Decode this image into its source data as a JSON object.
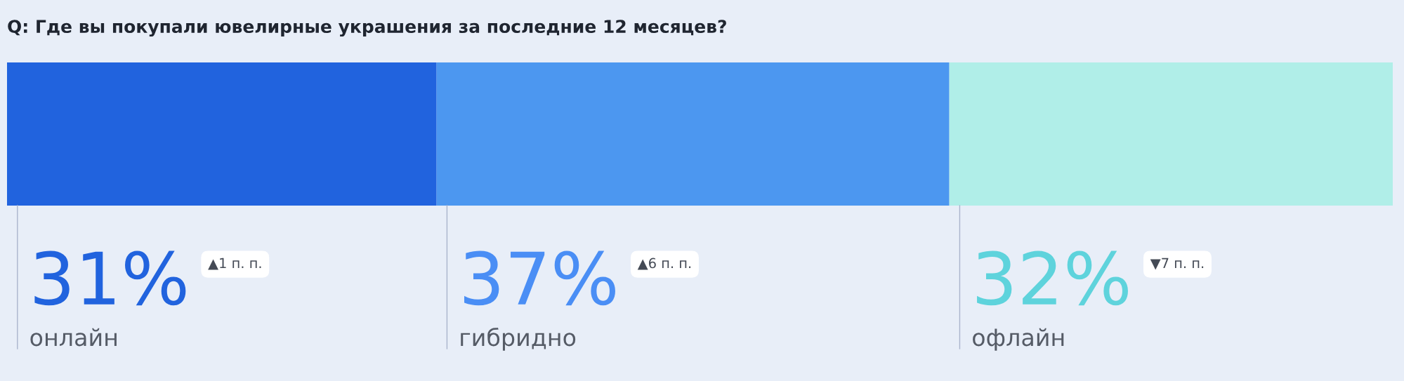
{
  "chart_data": {
    "type": "bar",
    "orientation": "horizontal",
    "stacked": true,
    "title": "Q: Где вы покупали ювелирные украшения за последние 12 месяцев?",
    "categories": [
      null
    ],
    "series": [
      {
        "name": "онлайн",
        "color": "#2163de",
        "values": [
          31
        ],
        "value_labels": [
          "31%"
        ]
      },
      {
        "name": "гибридно",
        "color": "#4c97f0",
        "values": [
          37
        ],
        "value_labels": [
          "37%"
        ]
      },
      {
        "name": "офлайн",
        "color": "#b0eee8",
        "values": [
          32
        ],
        "value_labels": [
          "32%"
        ]
      }
    ],
    "xlim": [
      0,
      100
    ],
    "tick_labels": false,
    "annotations": [
      "▲1 п. п.",
      "▲6 п. п.",
      "▼7 п. п."
    ]
  }
}
